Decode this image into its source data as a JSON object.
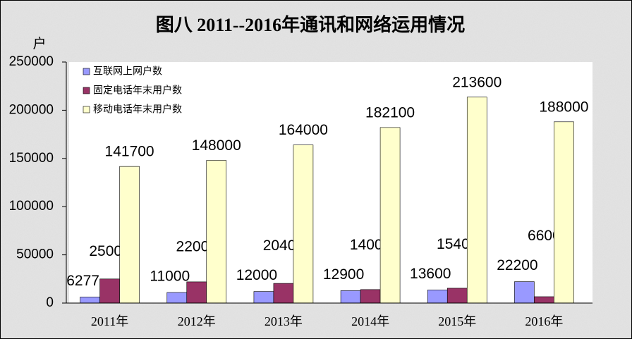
{
  "chart_data": {
    "type": "bar",
    "title": "图八  2011--2016年通讯和网络运用情况",
    "y_label": "户",
    "categories": [
      "2011年",
      "2012年",
      "2013年",
      "2014年",
      "2015年",
      "2016年"
    ],
    "series": [
      {
        "name": "互联网上网户数",
        "color": "#9999ff",
        "values": [
          6277,
          11000,
          12000,
          12900,
          13600,
          22200
        ]
      },
      {
        "name": "固定电话年末用户数",
        "color": "#993366",
        "values": [
          25000,
          22000,
          20400,
          14000,
          15400,
          6600
        ]
      },
      {
        "name": "移动电话年末用户数",
        "color": "#ffffcc",
        "values": [
          141700,
          148000,
          164000,
          182100,
          213600,
          188000
        ]
      }
    ],
    "ylim": [
      0,
      250000
    ],
    "yticks": [
      0,
      50000,
      100000,
      150000,
      200000,
      250000
    ],
    "legend": "top-left"
  }
}
